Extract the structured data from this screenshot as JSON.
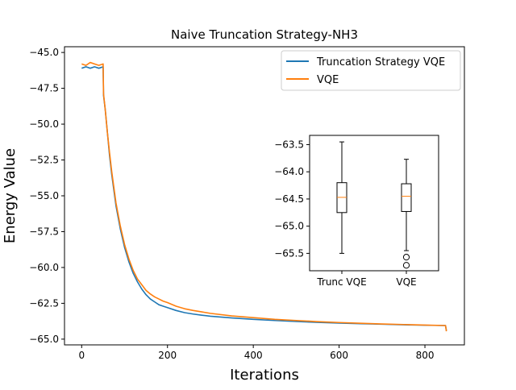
{
  "chart_data": [
    {
      "type": "line",
      "title": "Naive Truncation Strategy-NH3",
      "xlabel": "Iterations",
      "ylabel": "Energy Value",
      "xlim": [
        -40,
        892
      ],
      "ylim": [
        -65.4,
        -44.6
      ],
      "xticks": [
        0,
        200,
        400,
        600,
        800
      ],
      "xtick_labels": [
        "0",
        "200",
        "400",
        "600",
        "800"
      ],
      "yticks": [
        -45.0,
        -47.5,
        -50.0,
        -52.5,
        -55.0,
        -57.5,
        -60.0,
        -62.5,
        -65.0
      ],
      "ytick_labels": [
        "−45.0",
        "−47.5",
        "−50.0",
        "−52.5",
        "−55.0",
        "−57.5",
        "−60.0",
        "−62.5",
        "−65.0"
      ],
      "grid": false,
      "legend_position": "upper-right",
      "series": [
        {
          "name": "Truncation Strategy VQE",
          "color": "#1f77b4",
          "x": [
            0,
            10,
            20,
            30,
            40,
            50,
            51,
            55,
            60,
            65,
            70,
            80,
            90,
            100,
            110,
            120,
            130,
            140,
            150,
            160,
            170,
            180,
            190,
            200,
            220,
            240,
            260,
            280,
            300,
            350,
            400,
            450,
            500,
            550,
            600,
            650,
            700,
            750,
            800,
            848,
            850
          ],
          "y": [
            -46.1,
            -46.0,
            -46.1,
            -46.0,
            -46.1,
            -46.0,
            -48.0,
            -49.0,
            -50.6,
            -52.2,
            -53.5,
            -55.7,
            -57.3,
            -58.6,
            -59.6,
            -60.4,
            -61.0,
            -61.5,
            -61.9,
            -62.2,
            -62.4,
            -62.6,
            -62.7,
            -62.8,
            -63.0,
            -63.15,
            -63.25,
            -63.33,
            -63.4,
            -63.52,
            -63.62,
            -63.7,
            -63.77,
            -63.83,
            -63.88,
            -63.92,
            -63.96,
            -64.0,
            -64.03,
            -64.05,
            -64.4
          ]
        },
        {
          "name": "VQE",
          "color": "#ff7f0e",
          "x": [
            0,
            10,
            20,
            30,
            40,
            50,
            51,
            55,
            60,
            65,
            70,
            80,
            90,
            100,
            110,
            120,
            130,
            140,
            150,
            160,
            170,
            180,
            190,
            200,
            220,
            240,
            260,
            280,
            300,
            350,
            400,
            450,
            500,
            550,
            600,
            650,
            700,
            750,
            800,
            848,
            850
          ],
          "y": [
            -45.8,
            -45.9,
            -45.7,
            -45.8,
            -45.9,
            -45.8,
            -47.9,
            -49.0,
            -50.6,
            -52.0,
            -53.3,
            -55.5,
            -57.1,
            -58.4,
            -59.4,
            -60.2,
            -60.8,
            -61.2,
            -61.6,
            -61.85,
            -62.05,
            -62.2,
            -62.35,
            -62.45,
            -62.7,
            -62.88,
            -63.0,
            -63.1,
            -63.2,
            -63.38,
            -63.5,
            -63.62,
            -63.7,
            -63.78,
            -63.84,
            -63.89,
            -63.94,
            -63.98,
            -64.02,
            -64.05,
            -64.45
          ]
        }
      ]
    },
    {
      "type": "box",
      "categories": [
        "Trunc VQE",
        "VQE"
      ],
      "ylim": [
        -65.82,
        -63.33
      ],
      "yticks": [
        -63.5,
        -64.0,
        -64.5,
        -65.0,
        -65.5
      ],
      "ytick_labels": [
        "−63.5",
        "−64.0",
        "−64.5",
        "−65.0",
        "−65.5"
      ],
      "boxes": [
        {
          "label": "Trunc VQE",
          "whisker_high": -63.45,
          "q3": -64.2,
          "median": -64.47,
          "q1": -64.75,
          "whisker_low": -65.5,
          "outliers": []
        },
        {
          "label": "VQE",
          "whisker_high": -63.77,
          "q3": -64.22,
          "median": -64.45,
          "q1": -64.73,
          "whisker_low": -65.45,
          "outliers": [
            -65.57,
            -65.72
          ]
        }
      ],
      "colors": {
        "box": "#000000",
        "median": "#ff7f0e"
      }
    }
  ]
}
